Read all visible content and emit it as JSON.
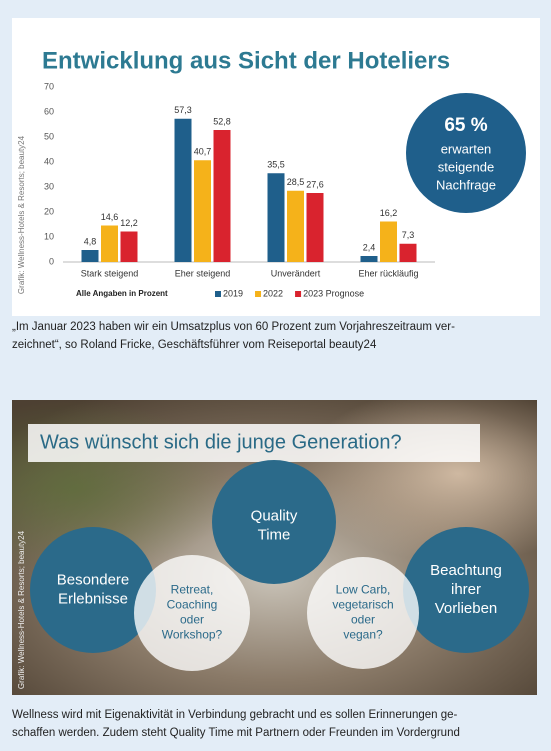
{
  "chart_data": {
    "type": "bar",
    "title": "Entwicklung aus Sicht der Hoteliers",
    "categories": [
      "Stark steigend",
      "Eher steigend",
      "Unverändert",
      "Eher rückläufig"
    ],
    "series": [
      {
        "name": "2019",
        "color": "#1f5f8b",
        "values": [
          4.8,
          57.3,
          35.5,
          2.4
        ],
        "value_labels": [
          "4,8",
          "57,3",
          "35,5",
          "2,4"
        ]
      },
      {
        "name": "2022",
        "color": "#f5b21a",
        "values": [
          14.6,
          40.7,
          28.5,
          16.2
        ],
        "value_labels": [
          "14,6",
          "40,7",
          "28,5",
          "16,2"
        ]
      },
      {
        "name": "2023 Prognose",
        "color": "#d9232e",
        "values": [
          12.2,
          52.8,
          27.6,
          7.3
        ],
        "value_labels": [
          "12,2",
          "52,8",
          "27,6",
          "7,3"
        ]
      }
    ],
    "ylim": [
      0,
      70
    ],
    "yticks": [
      0,
      10,
      20,
      30,
      40,
      50,
      60,
      70
    ],
    "grid": false,
    "note": "Alle Angaben in Prozent",
    "badge": [
      "65 %",
      "erwarten",
      "steigende",
      "Nachfrage"
    ],
    "credit": "Grafik: Wellness-Hotels & Resorts; beauty24"
  },
  "caption_1": [
    "„Im Januar 2023 haben wir ein Umsatzplus von 60 Prozent zum Vorjahreszeitraum ver-",
    "zeichnet“, so Roland Fricke, Geschäftsführer vom Reiseportal beauty24"
  ],
  "infographic": {
    "title": "Was wünscht sich die junge Generation?",
    "circles": [
      {
        "lines": [
          "Besondere",
          "Erlebnisse"
        ]
      },
      {
        "lines": [
          "Quality",
          "Time"
        ]
      },
      {
        "lines": [
          "Beachtung",
          "ihrer",
          "Vorlieben"
        ]
      },
      {
        "lines": [
          "Retreat,",
          "Coaching",
          "oder",
          "Workshop?"
        ]
      },
      {
        "lines": [
          "Low Carb,",
          "vegetarisch",
          "oder",
          "vegan?"
        ]
      }
    ],
    "credit": "Grafik: Wellness-Hotels & Resorts; beauty24"
  },
  "caption_2": [
    "Wellness wird mit Eigenaktivität in Verbindung gebracht und es sollen Erinnerungen ge-",
    "schaffen werden. Zudem steht Quality Time mit Partnern oder Freunden im Vordergrund"
  ]
}
